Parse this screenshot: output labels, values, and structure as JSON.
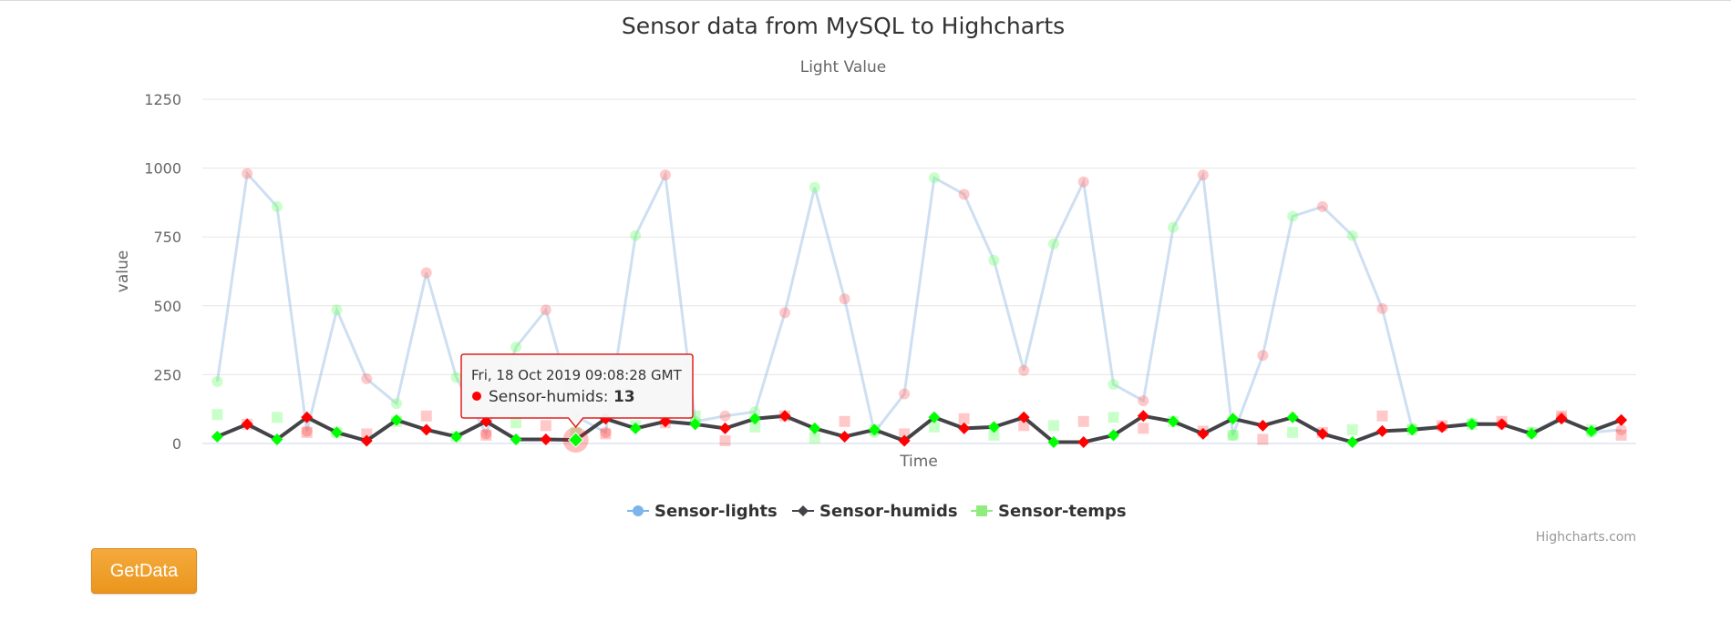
{
  "button": {
    "label": "GetData"
  },
  "credits": "Highcharts.com",
  "colors": {
    "lights_line": "#9fc1e6",
    "lights_marker": "#7cb5ec",
    "humids_line": "#434348",
    "temps_marker": "#90ed7d",
    "point_red": "#ff0000",
    "point_green": "#00ff00",
    "tooltip_border": "#e02020",
    "button": "#ee9d27"
  },
  "chart_data": {
    "type": "line",
    "title": "Sensor data from MySQL to Highcharts",
    "subtitle": "Light Value",
    "xlabel": "Time",
    "ylabel": "value",
    "ylim": [
      0,
      1250
    ],
    "yticks": [
      0,
      250,
      500,
      750,
      1000,
      1250
    ],
    "grid": true,
    "legend_placement": "bottom-center",
    "series": [
      {
        "name": "Sensor-lights",
        "marker": "circle",
        "values": [
          225,
          980,
          860,
          45,
          485,
          235,
          145,
          620,
          240,
          35,
          350,
          485,
          100,
          40,
          755,
          975,
          80,
          100,
          115,
          475,
          930,
          525,
          40,
          180,
          965,
          905,
          665,
          265,
          725,
          950,
          215,
          155,
          785,
          975,
          30,
          320,
          825,
          860,
          755,
          490,
          55,
          60,
          75,
          70,
          40,
          95,
          40,
          50
        ]
      },
      {
        "name": "Sensor-humids",
        "marker": "diamond",
        "values": [
          25,
          70,
          15,
          95,
          40,
          10,
          85,
          50,
          25,
          80,
          15,
          15,
          13,
          90,
          55,
          80,
          70,
          55,
          90,
          100,
          55,
          25,
          50,
          10,
          95,
          55,
          60,
          95,
          5,
          5,
          30,
          100,
          80,
          35,
          90,
          65,
          95,
          35,
          5,
          45,
          50,
          60,
          70,
          70,
          35,
          90,
          45,
          85
        ]
      },
      {
        "name": "Sensor-temps",
        "marker": "square",
        "values": [
          105,
          70,
          95,
          40,
          40,
          35,
          80,
          100,
          25,
          30,
          75,
          65,
          40,
          35,
          65,
          75,
          100,
          10,
          60,
          100,
          20,
          80,
          50,
          35,
          60,
          90,
          30,
          65,
          65,
          80,
          95,
          55,
          80,
          45,
          30,
          15,
          40,
          40,
          50,
          100,
          50,
          65,
          70,
          80,
          40,
          100,
          50,
          30
        ]
      }
    ],
    "highlighted_point": {
      "series": "Sensor-humids",
      "index": 12
    },
    "tooltip": {
      "header": "Fri, 18 Oct 2019 09:08:28 GMT",
      "series": "Sensor-humids",
      "value": "13"
    }
  }
}
